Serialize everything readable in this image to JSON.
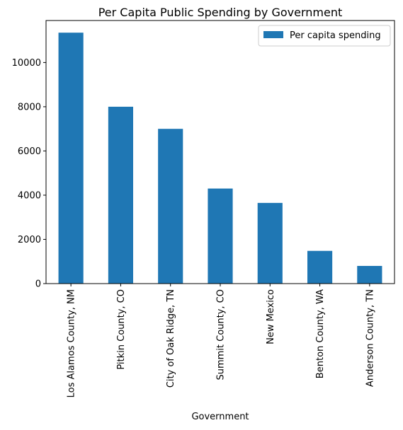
{
  "chart_data": {
    "type": "bar",
    "title": "Per Capita Public Spending by Government",
    "xlabel": "Government",
    "ylabel": "",
    "categories": [
      "Los Alamos County, NM",
      "Pitkin County, CO",
      "City of Oak Ridge, TN",
      "Summit County, CO",
      "New Mexico",
      "Benton County, WA",
      "Anderson County, TN"
    ],
    "series": [
      {
        "name": "Per capita spending",
        "values": [
          11350,
          8000,
          7000,
          4300,
          3650,
          1480,
          800
        ],
        "color": "#1f77b4"
      }
    ],
    "ylim": [
      0,
      11900
    ],
    "yticks": [
      0,
      2000,
      4000,
      6000,
      8000,
      10000
    ],
    "grid": false,
    "legend": {
      "position": "top-right",
      "entries": [
        "Per capita spending"
      ]
    }
  }
}
